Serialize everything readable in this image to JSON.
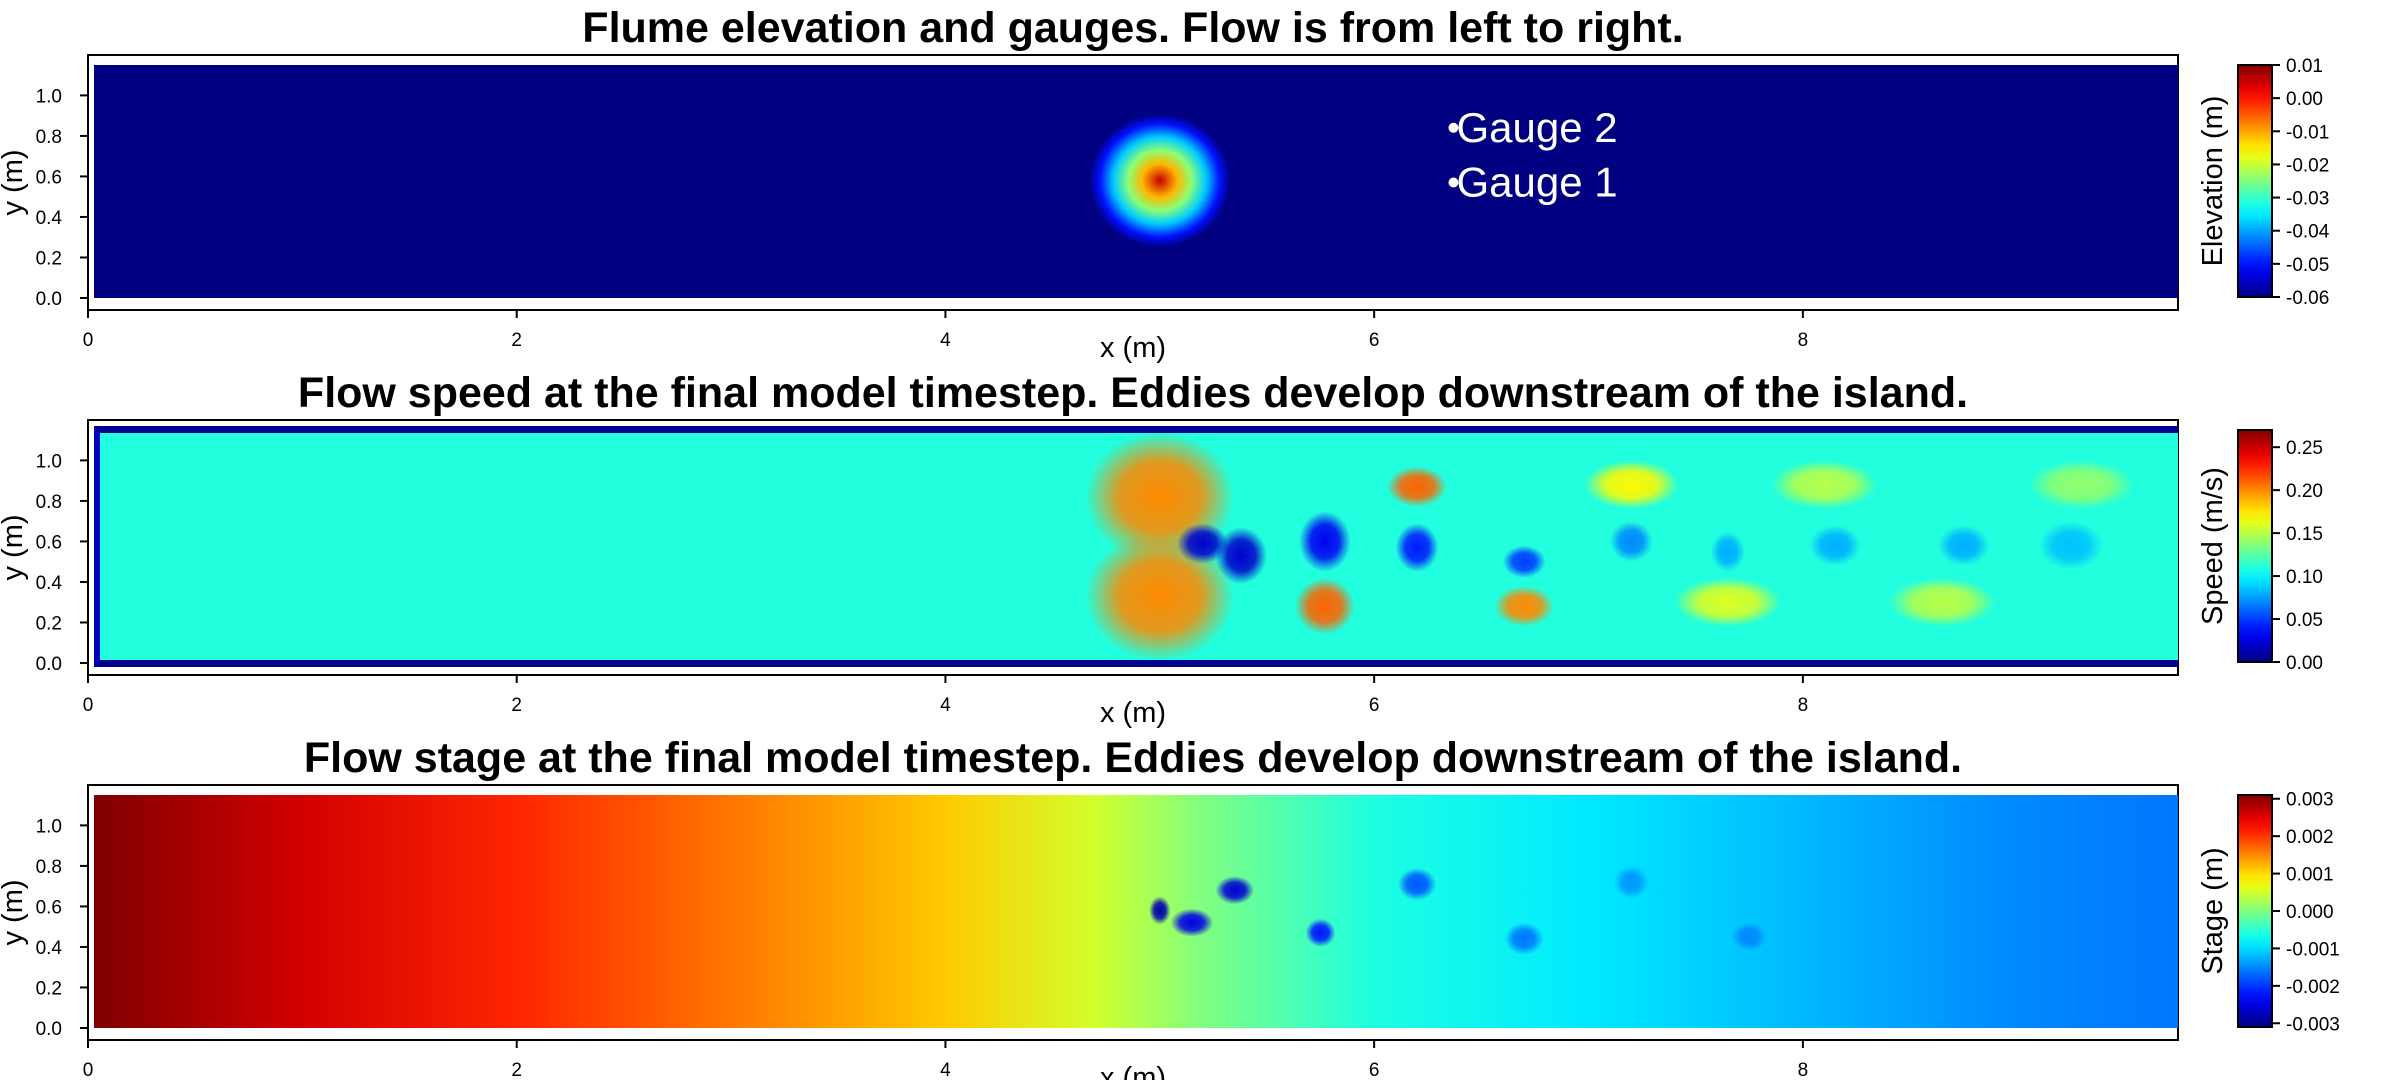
{
  "chart_data": [
    {
      "type": "heatmap",
      "title": "Flume elevation and gauges. Flow is from left to right.",
      "xlabel": "x (m)",
      "ylabel": "y (m)",
      "xlim": [
        0,
        9.75
      ],
      "ylim": [
        0,
        1.15
      ],
      "x_ticks": [
        "0",
        "2",
        "4",
        "6",
        "8"
      ],
      "y_ticks": [
        "0.0",
        "0.2",
        "0.4",
        "0.6",
        "0.8",
        "1.0"
      ],
      "colorbar": {
        "label": "Elevation (m)",
        "ticks": [
          "0.01",
          "0.00",
          "-0.01",
          "-0.02",
          "-0.03",
          "-0.04",
          "-0.05",
          "-0.06"
        ],
        "range": [
          -0.06,
          0.01
        ],
        "colormap": "jet"
      },
      "background_value": -0.06,
      "island": {
        "x": 5.0,
        "y": 0.58,
        "radius": 0.33,
        "peak_value": 0.005
      },
      "points": [
        {
          "label": "Gauge 2",
          "x": 6.37,
          "y": 0.84
        },
        {
          "label": "Gauge 1",
          "x": 6.37,
          "y": 0.57
        }
      ]
    },
    {
      "type": "heatmap",
      "title": "Flow speed at the final model timestep. Eddies develop downstream of the island.",
      "xlabel": "x (m)",
      "ylabel": "y (m)",
      "xlim": [
        0,
        9.75
      ],
      "ylim": [
        0,
        1.15
      ],
      "x_ticks": [
        "0",
        "2",
        "4",
        "6",
        "8"
      ],
      "y_ticks": [
        "0.0",
        "0.2",
        "0.4",
        "0.6",
        "0.8",
        "1.0"
      ],
      "colorbar": {
        "label": "Speed (m/s)",
        "ticks": [
          "0.25",
          "0.20",
          "0.15",
          "0.10",
          "0.05",
          "0.00"
        ],
        "range": [
          0,
          0.27
        ],
        "colormap": "jet"
      },
      "background_value": 0.11,
      "features": [
        {
          "x": 5.0,
          "y": 0.82,
          "rx": 0.35,
          "ry": 0.32,
          "value": 0.2
        },
        {
          "x": 5.0,
          "y": 0.33,
          "rx": 0.35,
          "ry": 0.32,
          "value": 0.2
        },
        {
          "x": 5.2,
          "y": 0.59,
          "rx": 0.12,
          "ry": 0.1,
          "value": 0.02
        },
        {
          "x": 5.38,
          "y": 0.53,
          "rx": 0.12,
          "ry": 0.14,
          "value": 0.02
        },
        {
          "x": 5.77,
          "y": 0.6,
          "rx": 0.12,
          "ry": 0.15,
          "value": 0.03
        },
        {
          "x": 5.77,
          "y": 0.28,
          "rx": 0.14,
          "ry": 0.14,
          "value": 0.21
        },
        {
          "x": 6.2,
          "y": 0.87,
          "rx": 0.14,
          "ry": 0.1,
          "value": 0.21
        },
        {
          "x": 6.2,
          "y": 0.57,
          "rx": 0.1,
          "ry": 0.12,
          "value": 0.04
        },
        {
          "x": 6.7,
          "y": 0.5,
          "rx": 0.1,
          "ry": 0.08,
          "value": 0.05
        },
        {
          "x": 6.7,
          "y": 0.28,
          "rx": 0.14,
          "ry": 0.1,
          "value": 0.2
        },
        {
          "x": 7.2,
          "y": 0.88,
          "rx": 0.22,
          "ry": 0.12,
          "value": 0.17
        },
        {
          "x": 7.2,
          "y": 0.6,
          "rx": 0.1,
          "ry": 0.1,
          "value": 0.07
        },
        {
          "x": 7.65,
          "y": 0.55,
          "rx": 0.08,
          "ry": 0.1,
          "value": 0.08
        },
        {
          "x": 7.65,
          "y": 0.3,
          "rx": 0.25,
          "ry": 0.12,
          "value": 0.16
        },
        {
          "x": 8.1,
          "y": 0.88,
          "rx": 0.25,
          "ry": 0.12,
          "value": 0.15
        },
        {
          "x": 8.15,
          "y": 0.58,
          "rx": 0.12,
          "ry": 0.1,
          "value": 0.08
        },
        {
          "x": 8.65,
          "y": 0.3,
          "rx": 0.25,
          "ry": 0.12,
          "value": 0.15
        },
        {
          "x": 8.75,
          "y": 0.58,
          "rx": 0.12,
          "ry": 0.1,
          "value": 0.08
        },
        {
          "x": 9.25,
          "y": 0.58,
          "rx": 0.15,
          "ry": 0.12,
          "value": 0.085
        },
        {
          "x": 9.3,
          "y": 0.88,
          "rx": 0.25,
          "ry": 0.12,
          "value": 0.14
        }
      ]
    },
    {
      "type": "heatmap",
      "title": "Flow stage at the final model timestep. Eddies develop downstream of the island.",
      "xlabel": "x (m)",
      "ylabel": "y (m)",
      "xlim": [
        0,
        9.75
      ],
      "ylim": [
        0,
        1.15
      ],
      "x_ticks": [
        "0",
        "2",
        "4",
        "6",
        "8"
      ],
      "y_ticks": [
        "0.0",
        "0.2",
        "0.4",
        "0.6",
        "0.8",
        "1.0"
      ],
      "colorbar": {
        "label": "Stage (m)",
        "ticks": [
          "0.003",
          "0.002",
          "0.001",
          "0.000",
          "-0.001",
          "-0.002",
          "-0.003"
        ],
        "range": [
          -0.0031,
          0.0031
        ],
        "colormap": "jet"
      },
      "gradient_profile": [
        {
          "x": 0.0,
          "value": 0.0031
        },
        {
          "x": 1.0,
          "value": 0.0026
        },
        {
          "x": 2.0,
          "value": 0.0021
        },
        {
          "x": 3.0,
          "value": 0.0016
        },
        {
          "x": 4.0,
          "value": 0.0011
        },
        {
          "x": 4.7,
          "value": 0.0005
        },
        {
          "x": 5.2,
          "value": 0.0
        },
        {
          "x": 6.0,
          "value": -0.0006
        },
        {
          "x": 7.0,
          "value": -0.0009
        },
        {
          "x": 8.0,
          "value": -0.0012
        },
        {
          "x": 9.0,
          "value": -0.0015
        },
        {
          "x": 9.75,
          "value": -0.0016
        }
      ],
      "features": [
        {
          "x": 5.0,
          "y": 0.58,
          "rx": 0.05,
          "ry": 0.07,
          "value": -0.0028
        },
        {
          "x": 5.15,
          "y": 0.52,
          "rx": 0.1,
          "ry": 0.07,
          "value": -0.0025
        },
        {
          "x": 5.35,
          "y": 0.68,
          "rx": 0.09,
          "ry": 0.07,
          "value": -0.0026
        },
        {
          "x": 5.75,
          "y": 0.47,
          "rx": 0.07,
          "ry": 0.07,
          "value": -0.0022
        },
        {
          "x": 6.2,
          "y": 0.71,
          "rx": 0.09,
          "ry": 0.08,
          "value": -0.0018
        },
        {
          "x": 6.7,
          "y": 0.44,
          "rx": 0.09,
          "ry": 0.08,
          "value": -0.0016
        },
        {
          "x": 7.2,
          "y": 0.72,
          "rx": 0.08,
          "ry": 0.08,
          "value": -0.0014
        },
        {
          "x": 7.75,
          "y": 0.45,
          "rx": 0.08,
          "ry": 0.07,
          "value": -0.0015
        }
      ]
    }
  ]
}
